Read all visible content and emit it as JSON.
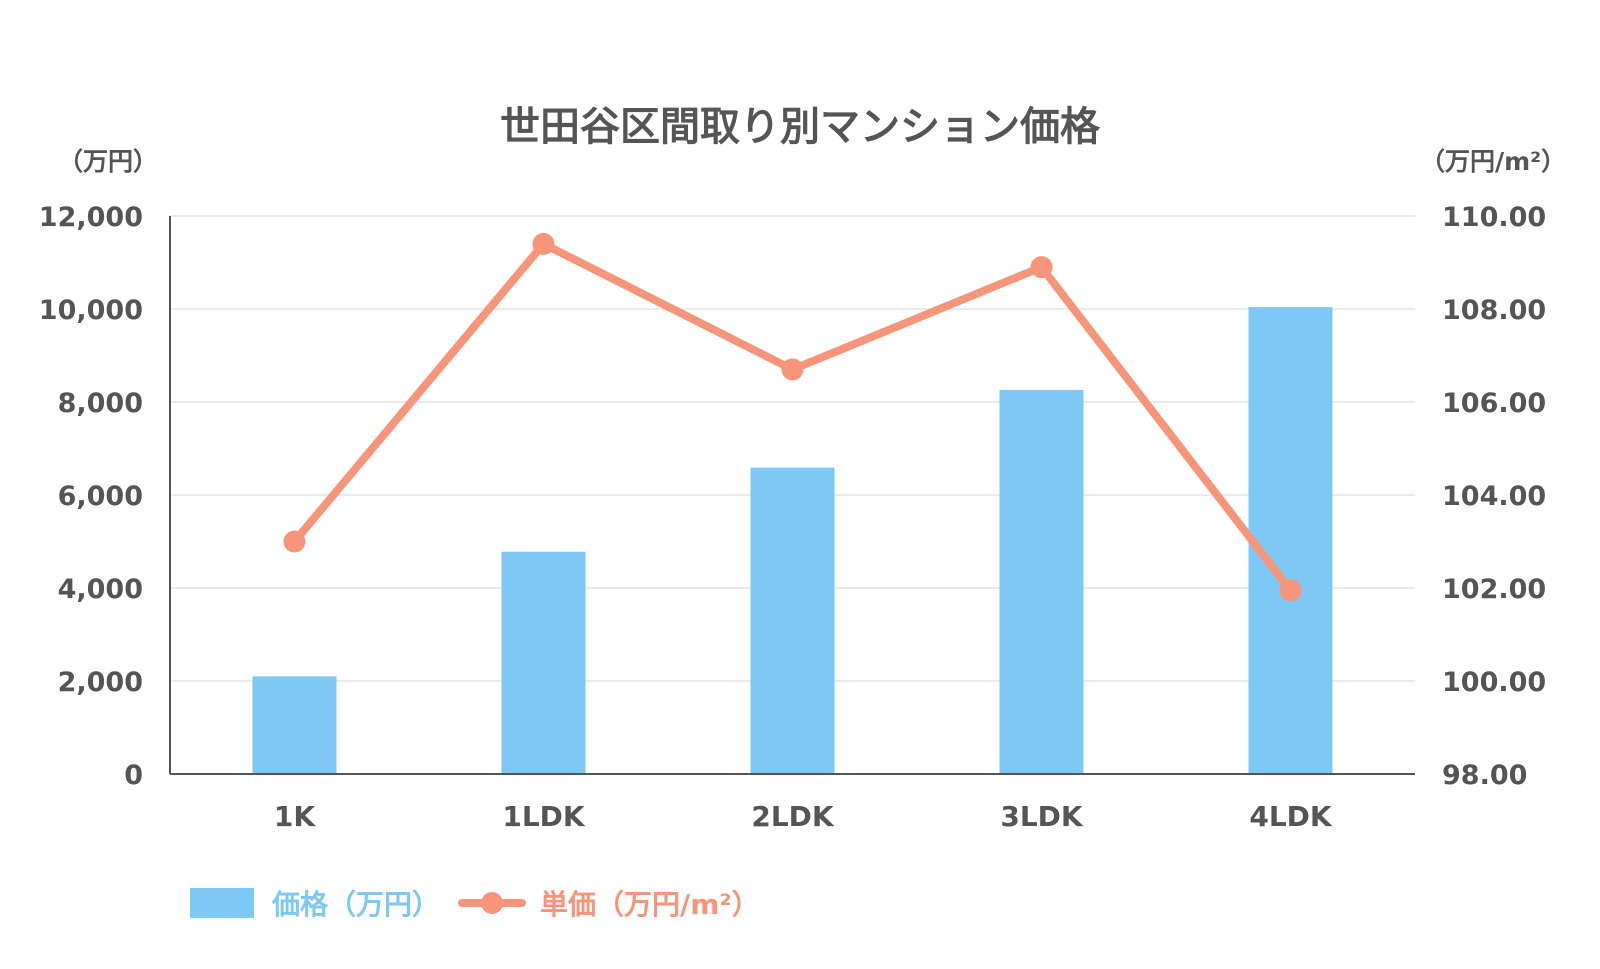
{
  "chart_data": {
    "type": "bar+line",
    "title": "世田谷区間取り別マンション価格",
    "categories": [
      "1K",
      "1LDK",
      "2LDK",
      "3LDK",
      "4LDK"
    ],
    "y_left": {
      "label": "（万円）",
      "range": [
        0,
        12000
      ],
      "ticks": [
        0,
        2000,
        4000,
        6000,
        8000,
        10000,
        12000
      ],
      "tick_labels": [
        "0",
        "2,000",
        "4,000",
        "6,000",
        "8,000",
        "10,000",
        "12,000"
      ]
    },
    "y_right": {
      "label": "（万円/m²）",
      "range": [
        98,
        110
      ],
      "ticks": [
        98,
        100,
        102,
        104,
        106,
        108,
        110
      ],
      "tick_labels": [
        "98.00",
        "100.00",
        "102.00",
        "104.00",
        "106.00",
        "108.00",
        "110.00"
      ]
    },
    "series": [
      {
        "name": "価格（万円）",
        "type": "bar",
        "axis": "left",
        "color": "#7ec8f6",
        "values": [
          2100,
          4780,
          6590,
          8260,
          10040
        ]
      },
      {
        "name": "単価（万円/m²）",
        "type": "line",
        "axis": "right",
        "color": "#f7957a",
        "values": [
          103.0,
          109.4,
          106.7,
          108.9,
          101.95
        ]
      }
    ],
    "grid": true,
    "legend_position": "bottom-left"
  }
}
